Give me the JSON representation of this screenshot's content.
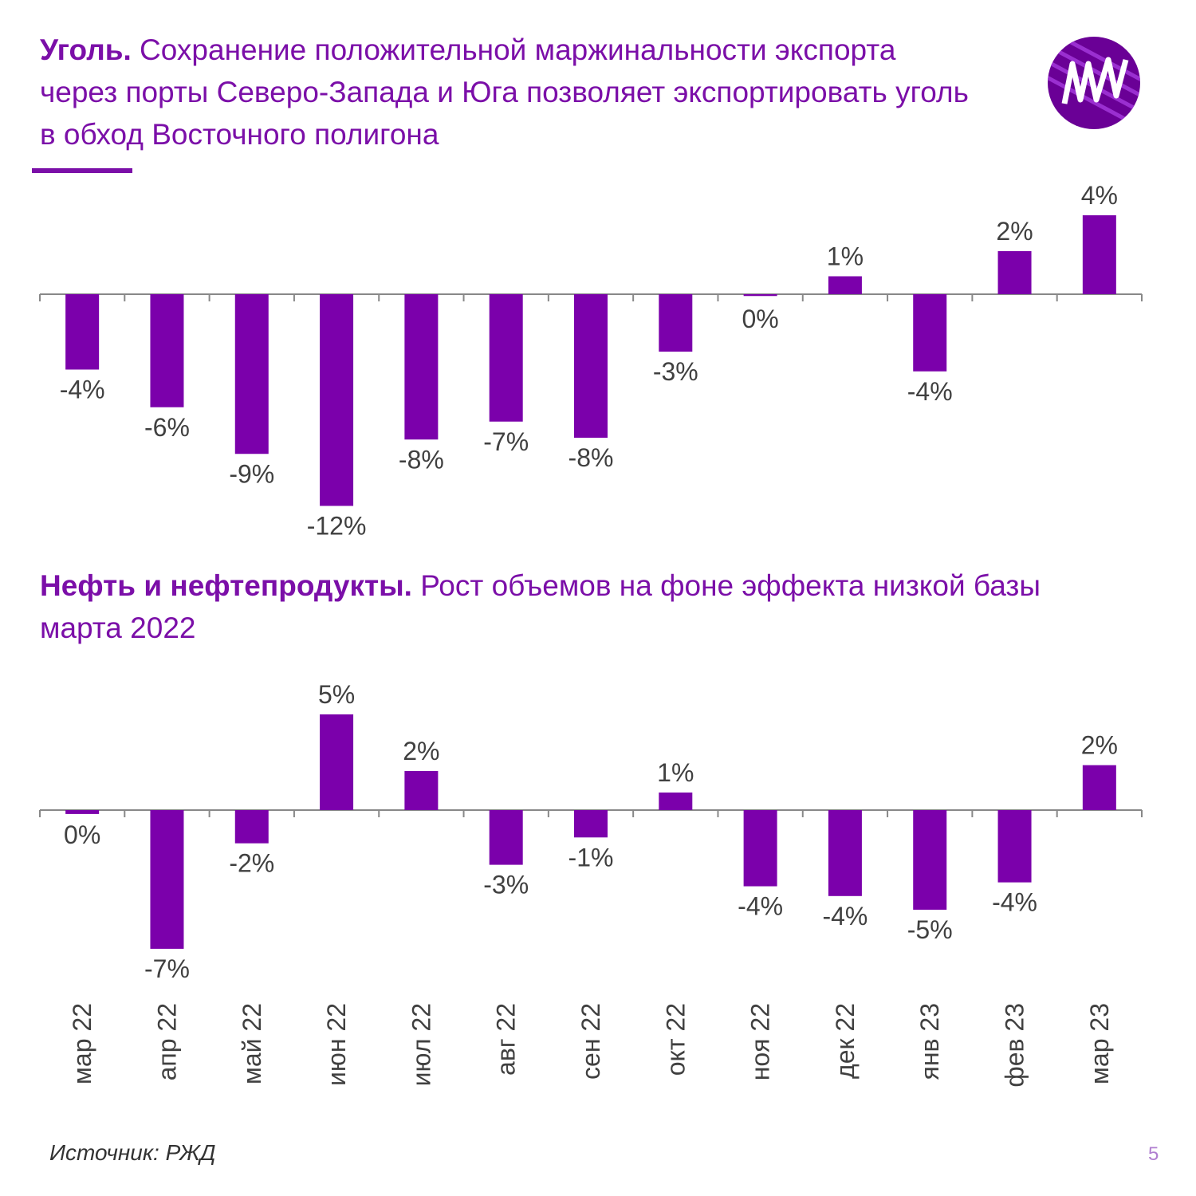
{
  "chart_data": [
    {
      "type": "bar",
      "title_bold": "Уголь.",
      "title": "Сохранение положительной маржинальности экспорта через порты Северо-Запада и Юга позволяет экспортировать уголь в обход Восточного полигона",
      "values": [
        -4.2,
        -6.3,
        -8.9,
        -11.8,
        -8.1,
        -7.1,
        -8.0,
        -3.2,
        -0.1,
        1.0,
        -4.3,
        2.4,
        4.4
      ],
      "value_labels": [
        "-4%",
        "-6%",
        "-9%",
        "-12%",
        "-8%",
        "-7%",
        "-8%",
        "-3%",
        "0%",
        "1%",
        "-4%",
        "2%",
        "4%"
      ],
      "color": "#7b00ab"
    },
    {
      "type": "bar",
      "title_bold": "Нефть и нефтепродукты.",
      "title": "Рост объемов на фоне эффекта низкой базы марта 2022",
      "categories": [
        "мар 22",
        "апр 22",
        "май 22",
        "июн 22",
        "июл 22",
        "авг 22",
        "сен 22",
        "окт 22",
        "ноя 22",
        "дек 22",
        "янв 23",
        "фев 23",
        "мар 23"
      ],
      "values": [
        -0.2,
        -7.1,
        -1.7,
        4.9,
        2.0,
        -2.8,
        -1.4,
        0.9,
        -3.9,
        -4.4,
        -5.1,
        -3.7,
        2.3
      ],
      "value_labels": [
        "0%",
        "-7%",
        "-2%",
        "5%",
        "2%",
        "-3%",
        "-1%",
        "1%",
        "-4%",
        "-4%",
        "-5%",
        "-4%",
        "2%"
      ],
      "color": "#7b00ab"
    }
  ],
  "source": "Источник: РЖД",
  "page_number": 5
}
